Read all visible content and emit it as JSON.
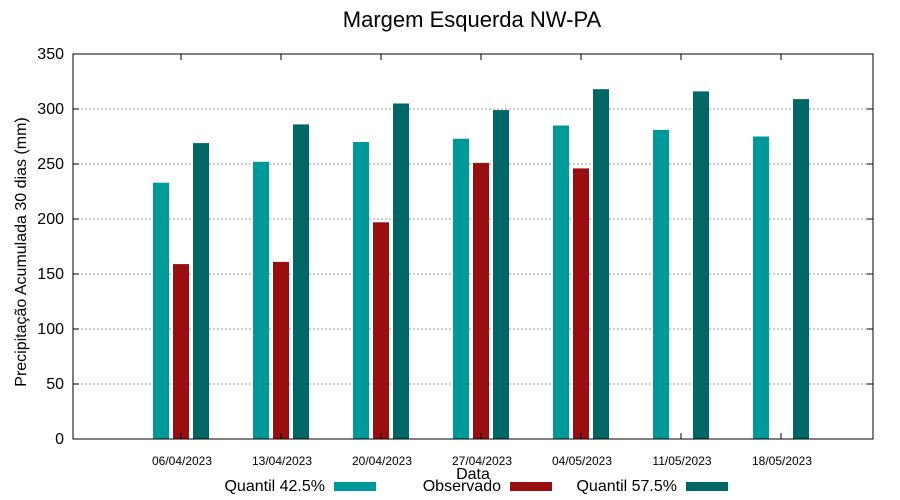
{
  "chart_data": {
    "type": "bar",
    "title": "Margem Esquerda NW-PA",
    "xlabel": "Data",
    "ylabel": "Precipitação Acumulada 30 dias (mm)",
    "ylim": [
      0,
      350
    ],
    "yticks": [
      0,
      50,
      100,
      150,
      200,
      250,
      300,
      350
    ],
    "grid": true,
    "legend_position": "bottom",
    "categories": [
      "06/04/2023",
      "13/04/2023",
      "20/04/2023",
      "27/04/2023",
      "04/05/2023",
      "11/05/2023",
      "18/05/2023"
    ],
    "series": [
      {
        "name": "Quantil 42.5%",
        "color": "#009999",
        "values": [
          233,
          252,
          270,
          273,
          285,
          281,
          275
        ]
      },
      {
        "name": "Observado",
        "color": "#990f0f",
        "values": [
          159,
          161,
          197,
          251,
          246,
          null,
          null
        ]
      },
      {
        "name": "Quantil 57.5%",
        "color": "#006666",
        "values": [
          269,
          286,
          305,
          299,
          318,
          316,
          309
        ]
      }
    ]
  }
}
